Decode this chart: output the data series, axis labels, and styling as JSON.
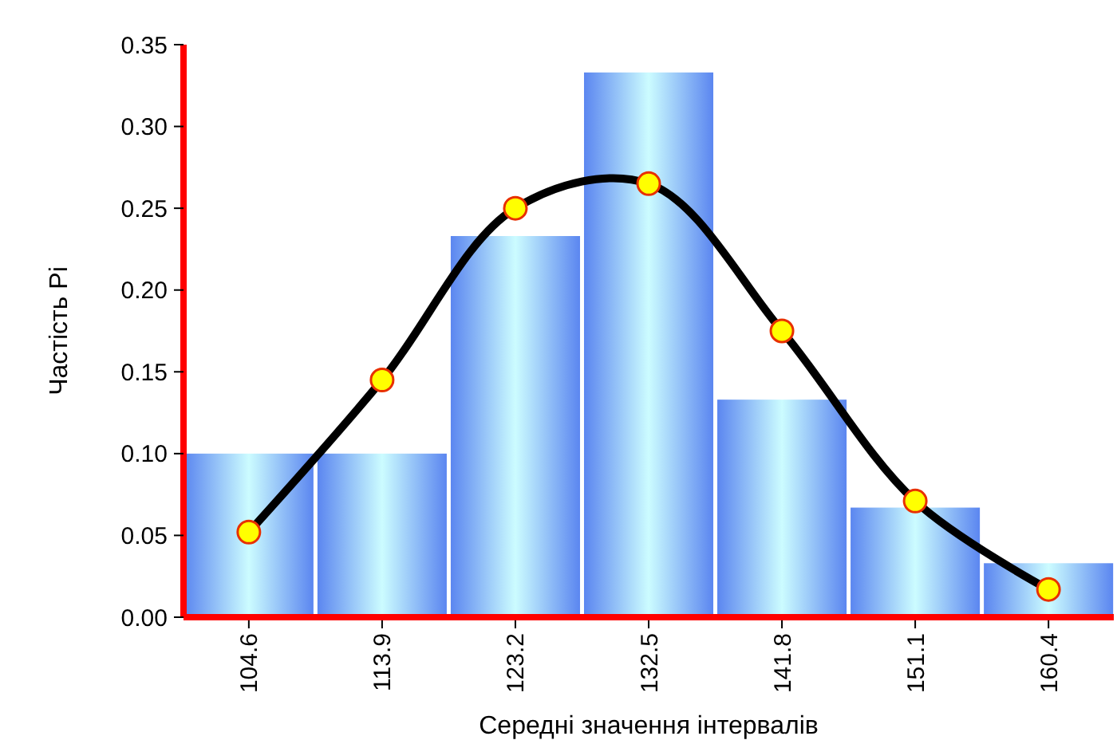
{
  "chart_data": {
    "type": "bar",
    "xlabel": "Середні значення інтервалів",
    "ylabel": "Частість Pi",
    "categories": [
      "104.6",
      "113.9",
      "123.2",
      "132.5",
      "141.8",
      "151.1",
      "160.4"
    ],
    "series": [
      {
        "color": "#5b86f0",
        "values": [
          0.1,
          0.1,
          0.233,
          0.333,
          0.133,
          0.067,
          0.033
        ]
      },
      {
        "type": "line",
        "color": "#000000",
        "marker": "circle",
        "values": [
          0.052,
          0.145,
          0.25,
          0.265,
          0.175,
          0.071,
          0.017
        ]
      }
    ],
    "ylim": [
      0,
      0.35
    ],
    "yticks": [
      {
        "value": 0,
        "label": "0.00"
      },
      {
        "value": 0.05,
        "label": "0.05"
      },
      {
        "value": 0.1,
        "label": "0.10"
      },
      {
        "value": 0.15,
        "label": "0.15"
      },
      {
        "value": 0.2,
        "label": "0.20"
      },
      {
        "value": 0.25,
        "label": "0.25"
      },
      {
        "value": 0.3,
        "label": "0.30"
      },
      {
        "value": 0.35,
        "label": "0.35"
      }
    ],
    "grid": false
  }
}
